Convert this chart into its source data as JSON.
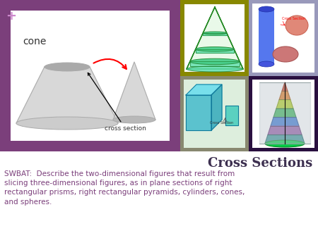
{
  "bg_color": "#7B3F7B",
  "white": "#ffffff",
  "title": "Cross Sections",
  "title_color": "#3d3050",
  "title_fontsize": 13,
  "body_text": "SWBAT:  Describe the two-dimensional figures that result from\nslicing three-dimensional figures, as in plane sections of right\nrectangular prisms, right rectangular pyramids, cylinders, cones,\nand spheres.",
  "body_color": "#7B3F7B",
  "body_fontsize": 7.5,
  "plus_color": "#cc88cc",
  "top_mid_bg": "#888800",
  "top_right_bg": "#9999bb",
  "bot_mid_bg": "#888870",
  "bot_right_bg": "#2a1040",
  "cone_fill": "#d8d8d8",
  "cone_edge": "#aaaaaa",
  "cone_ellipse_top": "#aaaaaa",
  "cone_ellipse_bot": "#c0c0c0"
}
